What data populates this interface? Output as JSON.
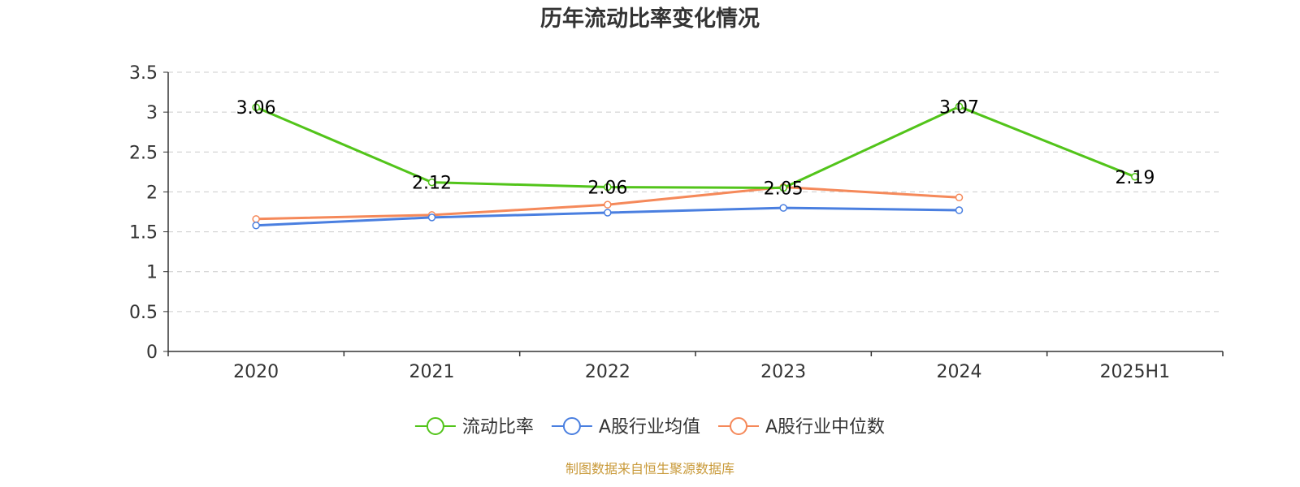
{
  "chart_data": {
    "type": "line",
    "title": "历年流动比率变化情况",
    "categories": [
      "2020",
      "2021",
      "2022",
      "2023",
      "2024",
      "2025H1"
    ],
    "y_ticks": [
      "0",
      "0.5",
      "1",
      "1.5",
      "2",
      "2.5",
      "3",
      "3.5"
    ],
    "ylim": [
      0,
      3.5
    ],
    "xlabel": "",
    "ylabel": "",
    "grid": true,
    "legend_position": "bottom-center",
    "series": [
      {
        "name": "流动比率",
        "color": "#52c41a",
        "values": [
          3.06,
          2.12,
          2.06,
          2.05,
          3.07,
          2.19
        ],
        "labels": [
          "3.06",
          "2.12",
          "2.06",
          "2.05",
          "3.07",
          "2.19"
        ],
        "show_labels": true
      },
      {
        "name": "A股行业均值",
        "color": "#4a7fe0",
        "values": [
          1.58,
          1.68,
          1.74,
          1.8,
          1.77,
          null
        ],
        "show_labels": false
      },
      {
        "name": "A股行业中位数",
        "color": "#f5895a",
        "values": [
          1.66,
          1.71,
          1.84,
          2.06,
          1.93,
          null
        ],
        "show_labels": false
      }
    ]
  },
  "footer": {
    "source": "制图数据来自恒生聚源数据库"
  }
}
